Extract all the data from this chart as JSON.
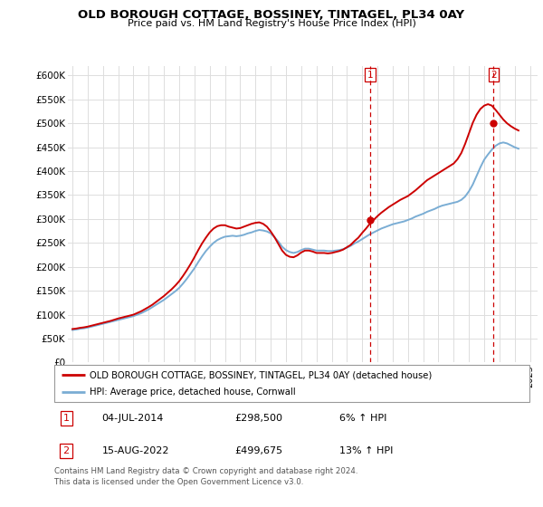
{
  "title": "OLD BOROUGH COTTAGE, BOSSINEY, TINTAGEL, PL34 0AY",
  "subtitle": "Price paid vs. HM Land Registry's House Price Index (HPI)",
  "ylim": [
    0,
    620000
  ],
  "yticks": [
    0,
    50000,
    100000,
    150000,
    200000,
    250000,
    300000,
    350000,
    400000,
    450000,
    500000,
    550000,
    600000
  ],
  "ytick_labels": [
    "£0",
    "£50K",
    "£100K",
    "£150K",
    "£200K",
    "£250K",
    "£300K",
    "£350K",
    "£400K",
    "£450K",
    "£500K",
    "£550K",
    "£600K"
  ],
  "xlim_start": 1994.7,
  "xlim_end": 2025.5,
  "sale1_date": 2014.5,
  "sale1_price": 298500,
  "sale1_label": "1",
  "sale2_date": 2022.62,
  "sale2_price": 499675,
  "sale2_label": "2",
  "red_line_color": "#cc0000",
  "blue_line_color": "#7aadd4",
  "annotation_color": "#cc0000",
  "grid_color": "#dddddd",
  "background_color": "#ffffff",
  "legend_label_red": "OLD BOROUGH COTTAGE, BOSSINEY, TINTAGEL, PL34 0AY (detached house)",
  "legend_label_blue": "HPI: Average price, detached house, Cornwall",
  "table_row1": [
    "1",
    "04-JUL-2014",
    "£298,500",
    "6% ↑ HPI"
  ],
  "table_row2": [
    "2",
    "15-AUG-2022",
    "£499,675",
    "13% ↑ HPI"
  ],
  "footer": "Contains HM Land Registry data © Crown copyright and database right 2024.\nThis data is licensed under the Open Government Licence v3.0.",
  "hpi_years": [
    1995.0,
    1995.25,
    1995.5,
    1995.75,
    1996.0,
    1996.25,
    1996.5,
    1996.75,
    1997.0,
    1997.25,
    1997.5,
    1997.75,
    1998.0,
    1998.25,
    1998.5,
    1998.75,
    1999.0,
    1999.25,
    1999.5,
    1999.75,
    2000.0,
    2000.25,
    2000.5,
    2000.75,
    2001.0,
    2001.25,
    2001.5,
    2001.75,
    2002.0,
    2002.25,
    2002.5,
    2002.75,
    2003.0,
    2003.25,
    2003.5,
    2003.75,
    2004.0,
    2004.25,
    2004.5,
    2004.75,
    2005.0,
    2005.25,
    2005.5,
    2005.75,
    2006.0,
    2006.25,
    2006.5,
    2006.75,
    2007.0,
    2007.25,
    2007.5,
    2007.75,
    2008.0,
    2008.25,
    2008.5,
    2008.75,
    2009.0,
    2009.25,
    2009.5,
    2009.75,
    2010.0,
    2010.25,
    2010.5,
    2010.75,
    2011.0,
    2011.25,
    2011.5,
    2011.75,
    2012.0,
    2012.25,
    2012.5,
    2012.75,
    2013.0,
    2013.25,
    2013.5,
    2013.75,
    2014.0,
    2014.25,
    2014.5,
    2014.75,
    2015.0,
    2015.25,
    2015.5,
    2015.75,
    2016.0,
    2016.25,
    2016.5,
    2016.75,
    2017.0,
    2017.25,
    2017.5,
    2017.75,
    2018.0,
    2018.25,
    2018.5,
    2018.75,
    2019.0,
    2019.25,
    2019.5,
    2019.75,
    2020.0,
    2020.25,
    2020.5,
    2020.75,
    2021.0,
    2021.25,
    2021.5,
    2021.75,
    2022.0,
    2022.25,
    2022.5,
    2022.75,
    2023.0,
    2023.25,
    2023.5,
    2023.75,
    2024.0,
    2024.25
  ],
  "hpi_values": [
    68000,
    69000,
    70500,
    71500,
    73000,
    75000,
    77000,
    79000,
    81000,
    83000,
    85000,
    87000,
    89000,
    91000,
    93000,
    95000,
    97000,
    100000,
    103000,
    107000,
    111000,
    116000,
    121000,
    126000,
    131000,
    137000,
    143000,
    149000,
    156000,
    165000,
    175000,
    186000,
    197000,
    210000,
    222000,
    233000,
    242000,
    250000,
    256000,
    260000,
    263000,
    264000,
    265000,
    264000,
    265000,
    267000,
    270000,
    272000,
    275000,
    277000,
    276000,
    274000,
    270000,
    262000,
    253000,
    242000,
    235000,
    231000,
    229000,
    231000,
    235000,
    238000,
    238000,
    236000,
    234000,
    234000,
    234000,
    233000,
    233000,
    234000,
    235000,
    237000,
    240000,
    244000,
    249000,
    253000,
    258000,
    263000,
    268000,
    272000,
    276000,
    280000,
    283000,
    286000,
    289000,
    291000,
    293000,
    295000,
    298000,
    301000,
    305000,
    308000,
    311000,
    315000,
    318000,
    321000,
    325000,
    328000,
    330000,
    332000,
    334000,
    336000,
    340000,
    347000,
    358000,
    372000,
    390000,
    408000,
    424000,
    435000,
    445000,
    453000,
    458000,
    460000,
    458000,
    454000,
    450000,
    447000
  ],
  "red_years": [
    1995.0,
    1995.25,
    1995.5,
    1995.75,
    1996.0,
    1996.25,
    1996.5,
    1996.75,
    1997.0,
    1997.25,
    1997.5,
    1997.75,
    1998.0,
    1998.25,
    1998.5,
    1998.75,
    1999.0,
    1999.25,
    1999.5,
    1999.75,
    2000.0,
    2000.25,
    2000.5,
    2000.75,
    2001.0,
    2001.25,
    2001.5,
    2001.75,
    2002.0,
    2002.25,
    2002.5,
    2002.75,
    2003.0,
    2003.25,
    2003.5,
    2003.75,
    2004.0,
    2004.25,
    2004.5,
    2004.75,
    2005.0,
    2005.25,
    2005.5,
    2005.75,
    2006.0,
    2006.25,
    2006.5,
    2006.75,
    2007.0,
    2007.25,
    2007.5,
    2007.75,
    2008.0,
    2008.25,
    2008.5,
    2008.75,
    2009.0,
    2009.25,
    2009.5,
    2009.75,
    2010.0,
    2010.25,
    2010.5,
    2010.75,
    2011.0,
    2011.25,
    2011.5,
    2011.75,
    2012.0,
    2012.25,
    2012.5,
    2012.75,
    2013.0,
    2013.25,
    2013.5,
    2013.75,
    2014.0,
    2014.25,
    2014.5,
    2014.75,
    2015.0,
    2015.25,
    2015.5,
    2015.75,
    2016.0,
    2016.25,
    2016.5,
    2016.75,
    2017.0,
    2017.25,
    2017.5,
    2017.75,
    2018.0,
    2018.25,
    2018.5,
    2018.75,
    2019.0,
    2019.25,
    2019.5,
    2019.75,
    2020.0,
    2020.25,
    2020.5,
    2020.75,
    2021.0,
    2021.25,
    2021.5,
    2021.75,
    2022.0,
    2022.25,
    2022.5,
    2022.75,
    2023.0,
    2023.25,
    2023.5,
    2023.75,
    2024.0,
    2024.25
  ],
  "red_values": [
    70000,
    71000,
    72500,
    73500,
    75000,
    77000,
    79000,
    81000,
    83000,
    85000,
    87000,
    89500,
    92000,
    94000,
    96000,
    98000,
    100000,
    103500,
    107000,
    111500,
    116000,
    121000,
    127000,
    133000,
    139000,
    146000,
    153000,
    161000,
    170000,
    181000,
    193000,
    206000,
    220000,
    235000,
    249000,
    261000,
    272000,
    280000,
    285000,
    287000,
    287000,
    284000,
    282000,
    280000,
    281000,
    284000,
    287000,
    290000,
    292000,
    293000,
    290000,
    284000,
    274000,
    262000,
    248000,
    234000,
    225000,
    221000,
    220000,
    224000,
    230000,
    234000,
    234000,
    232000,
    229000,
    229000,
    229000,
    228000,
    229000,
    231000,
    233000,
    236000,
    241000,
    246000,
    254000,
    261000,
    271000,
    280000,
    290000,
    298000,
    306000,
    313000,
    319000,
    325000,
    330000,
    335000,
    340000,
    344000,
    348000,
    354000,
    360000,
    367000,
    374000,
    381000,
    386000,
    391000,
    396000,
    401000,
    406000,
    411000,
    416000,
    425000,
    438000,
    457000,
    479000,
    501000,
    518000,
    530000,
    537000,
    540000,
    537000,
    528000,
    518000,
    508000,
    500000,
    494000,
    489000,
    485000
  ]
}
